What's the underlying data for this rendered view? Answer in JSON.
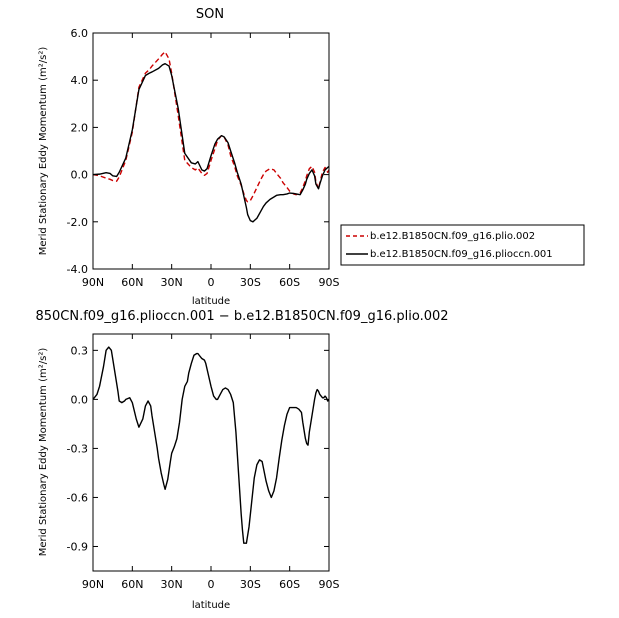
{
  "chart_data": [
    {
      "type": "line",
      "title": "SON",
      "xlabel": "latitude",
      "ylabel": "Merid Stationary Eddy Momentum  (m²/s²)",
      "x_tick_labels": [
        "90N",
        "60N",
        "30N",
        "0",
        "30S",
        "60S",
        "90S"
      ],
      "x_tick_values": [
        90,
        60,
        30,
        0,
        -30,
        -60,
        -90
      ],
      "xlim": [
        90,
        -90
      ],
      "y_tick_labels": [
        "-4.0",
        "-2.0",
        "0.0",
        "2.0",
        "4.0",
        "6.0"
      ],
      "y_tick_values": [
        -4,
        -2,
        0,
        2,
        4,
        6
      ],
      "ylim": [
        -4,
        6
      ],
      "grid": false,
      "legend_position": "right",
      "series": [
        {
          "name": "b.e12.B1850CN.f09_g16.plio.002",
          "color": "#cc0000",
          "style": "dashed",
          "x": [
            90,
            85,
            80,
            77,
            75,
            72,
            70,
            65,
            60,
            55,
            50,
            47,
            45,
            40,
            37,
            35,
            32,
            30,
            25,
            20,
            15,
            12,
            10,
            7,
            5,
            3,
            0,
            -3,
            -5,
            -8,
            -10,
            -13,
            -15,
            -18,
            -20,
            -23,
            -25,
            -27,
            -28,
            -30,
            -32,
            -35,
            -38,
            -40,
            -42,
            -45,
            -48,
            -50,
            -53,
            -55,
            -58,
            -60,
            -63,
            -65,
            -68,
            -70,
            -72,
            -73,
            -75,
            -77,
            -79,
            -80,
            -82,
            -83,
            -85,
            -87,
            -88,
            -89,
            -90
          ],
          "y": [
            0.0,
            -0.05,
            -0.15,
            -0.2,
            -0.25,
            -0.28,
            -0.1,
            0.6,
            1.8,
            3.7,
            4.3,
            4.45,
            4.6,
            4.9,
            5.1,
            5.2,
            4.9,
            4.3,
            2.5,
            0.6,
            0.3,
            0.2,
            0.28,
            0.05,
            -0.03,
            0.05,
            0.6,
            1.1,
            1.45,
            1.65,
            1.6,
            1.25,
            0.8,
            0.35,
            -0.05,
            -0.45,
            -0.8,
            -1.1,
            -1.15,
            -1.1,
            -0.9,
            -0.55,
            -0.2,
            0.0,
            0.15,
            0.25,
            0.2,
            0.05,
            -0.15,
            -0.35,
            -0.55,
            -0.7,
            -0.82,
            -0.85,
            -0.78,
            -0.55,
            -0.25,
            -0.05,
            0.25,
            0.35,
            0.1,
            -0.3,
            -0.6,
            -0.35,
            0.1,
            0.3,
            0.2,
            0.1,
            0.2
          ]
        },
        {
          "name": "b.e12.B1850CN.f09_g16.plioccn.001",
          "color": "#000000",
          "style": "solid",
          "x": [
            90,
            85,
            80,
            77,
            75,
            72,
            70,
            65,
            60,
            55,
            50,
            47,
            45,
            40,
            37,
            35,
            32,
            30,
            25,
            20,
            15,
            12,
            10,
            7,
            5,
            3,
            0,
            -3,
            -5,
            -8,
            -10,
            -13,
            -15,
            -18,
            -20,
            -23,
            -25,
            -27,
            -28,
            -30,
            -32,
            -35,
            -38,
            -40,
            -42,
            -45,
            -48,
            -50,
            -53,
            -55,
            -58,
            -60,
            -63,
            -65,
            -68,
            -70,
            -72,
            -73,
            -75,
            -77,
            -79,
            -80,
            -82,
            -83,
            -85,
            -87,
            -88,
            -89,
            -90
          ],
          "y": [
            0.0,
            0.02,
            0.08,
            0.05,
            -0.05,
            -0.08,
            0.1,
            0.7,
            1.9,
            3.6,
            4.2,
            4.3,
            4.35,
            4.5,
            4.65,
            4.7,
            4.6,
            4.2,
            2.8,
            0.9,
            0.5,
            0.45,
            0.55,
            0.2,
            0.15,
            0.25,
            0.8,
            1.3,
            1.5,
            1.65,
            1.6,
            1.35,
            1.0,
            0.5,
            0.1,
            -0.4,
            -0.9,
            -1.4,
            -1.7,
            -1.95,
            -2.0,
            -1.85,
            -1.55,
            -1.35,
            -1.2,
            -1.05,
            -0.95,
            -0.88,
            -0.85,
            -0.85,
            -0.82,
            -0.78,
            -0.8,
            -0.82,
            -0.85,
            -0.65,
            -0.4,
            -0.2,
            0.05,
            0.2,
            -0.05,
            -0.4,
            -0.6,
            -0.4,
            -0.05,
            0.2,
            0.25,
            0.3,
            0.35
          ]
        }
      ]
    },
    {
      "type": "line",
      "title": "850CN.f09_g16.plioccn.001 − b.e12.B1850CN.f09_g16.plio.002",
      "xlabel": "latitude",
      "ylabel": "Merid Stationary Eddy Momentum  (m²/s²)",
      "x_tick_labels": [
        "90N",
        "60N",
        "30N",
        "0",
        "30S",
        "60S",
        "90S"
      ],
      "x_tick_values": [
        90,
        60,
        30,
        0,
        -30,
        -60,
        -90
      ],
      "xlim": [
        90,
        -90
      ],
      "y_tick_labels": [
        "-0.9",
        "-0.6",
        "-0.3",
        "0.0",
        "0.3"
      ],
      "y_tick_values": [
        -0.9,
        -0.6,
        -0.3,
        0.0,
        0.3
      ],
      "ylim": [
        -1.05,
        0.4
      ],
      "grid": false,
      "series": [
        {
          "name": "",
          "color": "#000000",
          "style": "solid",
          "x": [
            90,
            87,
            85,
            82,
            80,
            78,
            76,
            75,
            73,
            71,
            70,
            68,
            66,
            65,
            62,
            60,
            57,
            55,
            52,
            50,
            48,
            46,
            45,
            43,
            41,
            40,
            38,
            36,
            35,
            33,
            31,
            30,
            28,
            26,
            24,
            22,
            20,
            18,
            17,
            15,
            13,
            11,
            10,
            9,
            7,
            5,
            4,
            2,
            0,
            -2,
            -4,
            -5,
            -7,
            -9,
            -11,
            -13,
            -15,
            -17,
            -19,
            -21,
            -23,
            -24,
            -25,
            -27,
            -29,
            -31,
            -33,
            -35,
            -37,
            -39,
            -40,
            -42,
            -44,
            -46,
            -48,
            -50,
            -52,
            -54,
            -56,
            -58,
            -60,
            -62,
            -63,
            -65,
            -67,
            -69,
            -70,
            -72,
            -73,
            -74,
            -75,
            -77,
            -78,
            -79,
            -80,
            -81,
            -82,
            -83,
            -85,
            -86,
            -87,
            -88,
            -89,
            -90
          ],
          "y": [
            0.0,
            0.03,
            0.08,
            0.2,
            0.3,
            0.32,
            0.3,
            0.25,
            0.15,
            0.05,
            -0.01,
            -0.02,
            -0.01,
            0.0,
            0.01,
            -0.02,
            -0.12,
            -0.17,
            -0.12,
            -0.04,
            -0.01,
            -0.04,
            -0.1,
            -0.2,
            -0.3,
            -0.36,
            -0.45,
            -0.52,
            -0.55,
            -0.49,
            -0.38,
            -0.33,
            -0.29,
            -0.24,
            -0.14,
            0.0,
            0.08,
            0.11,
            0.16,
            0.22,
            0.27,
            0.28,
            0.28,
            0.27,
            0.25,
            0.24,
            0.22,
            0.15,
            0.08,
            0.02,
            0.0,
            0.0,
            0.03,
            0.06,
            0.07,
            0.06,
            0.03,
            -0.02,
            -0.2,
            -0.45,
            -0.7,
            -0.8,
            -0.88,
            -0.88,
            -0.78,
            -0.63,
            -0.48,
            -0.4,
            -0.37,
            -0.38,
            -0.42,
            -0.5,
            -0.56,
            -0.6,
            -0.56,
            -0.48,
            -0.36,
            -0.25,
            -0.16,
            -0.09,
            -0.05,
            -0.05,
            -0.05,
            -0.05,
            -0.06,
            -0.08,
            -0.14,
            -0.24,
            -0.27,
            -0.28,
            -0.2,
            -0.1,
            -0.05,
            0.0,
            0.04,
            0.06,
            0.05,
            0.03,
            0.01,
            0.01,
            0.02,
            0.01,
            -0.01,
            0.0
          ]
        }
      ]
    }
  ]
}
